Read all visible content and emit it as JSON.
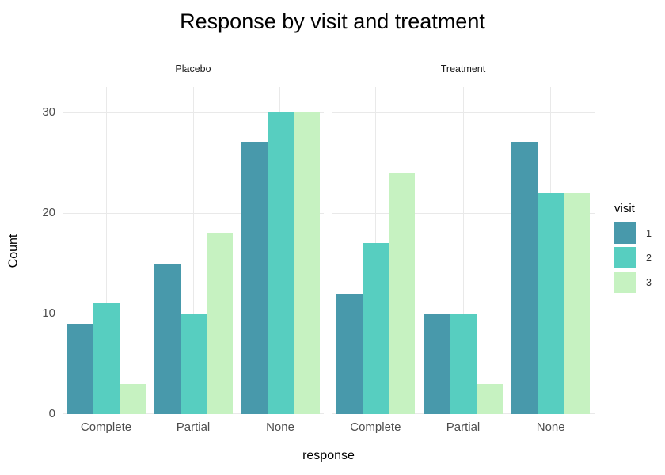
{
  "title": "Response by visit and treatment",
  "chart_data": {
    "type": "bar",
    "grouping": "dodged",
    "title": "Response by visit and treatment",
    "xlabel": "response",
    "ylabel": "Count",
    "y_ticks": [
      0,
      10,
      20,
      30
    ],
    "ylim": [
      0,
      32.5
    ],
    "grid": "major-only",
    "legend_position": "right",
    "categories": [
      "Complete",
      "Partial",
      "None"
    ],
    "facets": [
      {
        "label": "Placebo",
        "series": [
          {
            "name": "1",
            "values": [
              9,
              15,
              27
            ]
          },
          {
            "name": "2",
            "values": [
              11,
              10,
              30
            ]
          },
          {
            "name": "3",
            "values": [
              3,
              18,
              30
            ]
          }
        ]
      },
      {
        "label": "Treatment",
        "series": [
          {
            "name": "1",
            "values": [
              12,
              10,
              27
            ]
          },
          {
            "name": "2",
            "values": [
              17,
              10,
              22
            ]
          },
          {
            "name": "3",
            "values": [
              24,
              3,
              22
            ]
          }
        ]
      }
    ],
    "legend": {
      "title": "visit",
      "entries": [
        "1",
        "2",
        "3"
      ]
    },
    "colors": {
      "1": "#4899AB",
      "2": "#57CEC0",
      "3": "#C6F2C1"
    },
    "gridline_color": "#E9E9E9",
    "axis_text_color": "#4D4D4D",
    "background_color": "#FFFFFF"
  }
}
